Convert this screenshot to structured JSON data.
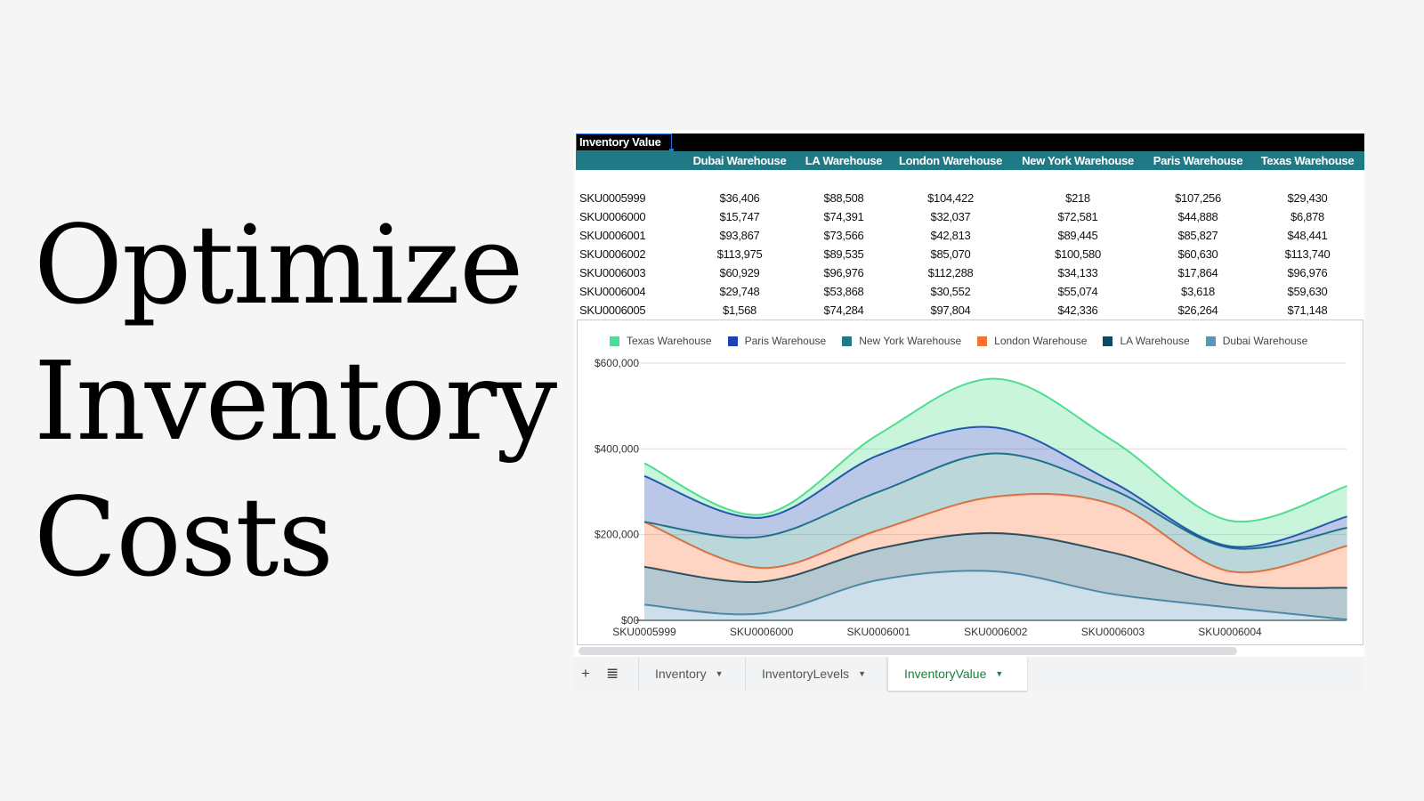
{
  "slide": {
    "title_lines": [
      "Optimize",
      "Inventory",
      "Costs"
    ]
  },
  "sheet": {
    "title_cell": "Inventory Value",
    "columns": [
      "Dubai Warehouse",
      "LA Warehouse",
      "London Warehouse",
      "New York Warehouse",
      "Paris Warehouse",
      "Texas Warehouse"
    ],
    "rows": [
      {
        "sku": "SKU0005999",
        "values": [
          "$36,406",
          "$88,508",
          "$104,422",
          "$218",
          "$107,256",
          "$29,430"
        ]
      },
      {
        "sku": "SKU0006000",
        "values": [
          "$15,747",
          "$74,391",
          "$32,037",
          "$72,581",
          "$44,888",
          "$6,878"
        ]
      },
      {
        "sku": "SKU0006001",
        "values": [
          "$93,867",
          "$73,566",
          "$42,813",
          "$89,445",
          "$85,827",
          "$48,441"
        ]
      },
      {
        "sku": "SKU0006002",
        "values": [
          "$113,975",
          "$89,535",
          "$85,070",
          "$100,580",
          "$60,630",
          "$113,740"
        ]
      },
      {
        "sku": "SKU0006003",
        "values": [
          "$60,929",
          "$96,976",
          "$112,288",
          "$34,133",
          "$17,864",
          "$96,976"
        ]
      },
      {
        "sku": "SKU0006004",
        "values": [
          "$29,748",
          "$53,868",
          "$30,552",
          "$55,074",
          "$3,618",
          "$59,630"
        ]
      },
      {
        "sku": "SKU0006005",
        "values": [
          "$1,568",
          "$74,284",
          "$97,804",
          "$42,336",
          "$26,264",
          "$71,148"
        ]
      }
    ]
  },
  "chart_data": {
    "type": "area",
    "stacked": true,
    "categories": [
      "SKU0005999",
      "SKU0006000",
      "SKU0006001",
      "SKU0006002",
      "SKU0006003",
      "SKU0006004",
      "SKU0006005"
    ],
    "x_tick_labels": [
      "SKU0005999",
      "SKU0006000",
      "SKU0006001",
      "SKU0006002",
      "SKU0006003",
      "SKU0006004"
    ],
    "y_ticks": [
      "$00",
      "$200,000",
      "$400,000",
      "$600,000"
    ],
    "ylim": [
      0,
      600000
    ],
    "grid": true,
    "legend_position": "top",
    "legend": [
      "Texas Warehouse",
      "Paris Warehouse",
      "New York Warehouse",
      "London Warehouse",
      "LA Warehouse",
      "Dubai Warehouse"
    ],
    "series": [
      {
        "name": "Dubai Warehouse",
        "color": "#5b95b5",
        "values": [
          36406,
          15747,
          93867,
          113975,
          60929,
          29748,
          1568
        ]
      },
      {
        "name": "LA Warehouse",
        "color": "#0b4a63",
        "values": [
          88508,
          74391,
          73566,
          89535,
          96976,
          53868,
          74284
        ]
      },
      {
        "name": "London Warehouse",
        "color": "#fb7038",
        "values": [
          104422,
          32037,
          42813,
          85070,
          112288,
          30552,
          97804
        ]
      },
      {
        "name": "New York Warehouse",
        "color": "#1f7a85",
        "values": [
          218,
          72581,
          89445,
          100580,
          34133,
          55074,
          42336
        ]
      },
      {
        "name": "Paris Warehouse",
        "color": "#1a44b0",
        "values": [
          107256,
          44888,
          85827,
          60630,
          17864,
          3618,
          26264
        ]
      },
      {
        "name": "Texas Warehouse",
        "color": "#4fdd8f",
        "values": [
          29430,
          6878,
          48441,
          113740,
          96976,
          59630,
          71148
        ]
      }
    ]
  },
  "tabs": {
    "add_icon": "+",
    "menu_icon": "≣",
    "items": [
      {
        "label": "Inventory"
      },
      {
        "label": "InventoryLevels"
      },
      {
        "label": "InventoryValue",
        "active": true
      }
    ]
  }
}
